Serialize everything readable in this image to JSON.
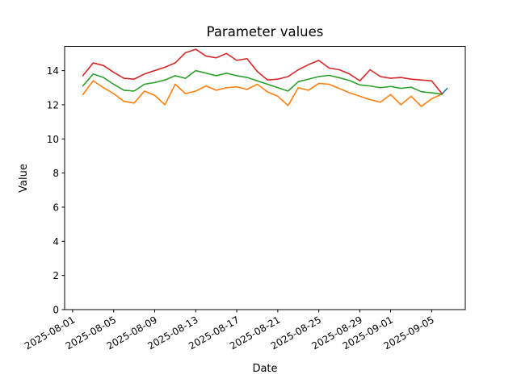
{
  "chart_data": {
    "type": "line",
    "title": "Parameter values",
    "xlabel": "Date",
    "ylabel": "Value",
    "grid": false,
    "legend": "none",
    "ylim": [
      0,
      15.42
    ],
    "xlim_day_offsets": [
      -0.78,
      38.28
    ],
    "y_ticks": [
      0,
      2,
      4,
      6,
      8,
      10,
      12,
      14
    ],
    "x_tick_labels": [
      "2025-08-01",
      "2025-08-05",
      "2025-08-09",
      "2025-08-13",
      "2025-08-17",
      "2025-08-21",
      "2025-08-25",
      "2025-08-29",
      "2025-09-01",
      "2025-09-05"
    ],
    "x_tick_day_offsets": [
      0,
      4,
      8,
      12,
      16,
      20,
      24,
      28,
      31,
      35
    ],
    "dates": [
      "2025-08-02",
      "2025-08-03",
      "2025-08-04",
      "2025-08-05",
      "2025-08-06",
      "2025-08-07",
      "2025-08-08",
      "2025-08-09",
      "2025-08-10",
      "2025-08-11",
      "2025-08-12",
      "2025-08-13",
      "2025-08-14",
      "2025-08-15",
      "2025-08-16",
      "2025-08-17",
      "2025-08-18",
      "2025-08-19",
      "2025-08-20",
      "2025-08-21",
      "2025-08-22",
      "2025-08-23",
      "2025-08-24",
      "2025-08-25",
      "2025-08-26",
      "2025-08-27",
      "2025-08-28",
      "2025-08-29",
      "2025-08-30",
      "2025-08-31",
      "2025-09-01",
      "2025-09-02",
      "2025-09-03",
      "2025-09-04",
      "2025-09-05",
      "2025-09-06"
    ],
    "series": [
      {
        "name": "blue",
        "color": "#1f77b4",
        "day_offsets": [
          36,
          36.5
        ],
        "values": [
          12.62,
          12.95
        ]
      },
      {
        "name": "orange",
        "color": "#ff7f0e",
        "values": [
          12.6,
          13.4,
          13.0,
          12.65,
          12.2,
          12.1,
          12.8,
          12.55,
          12.0,
          13.2,
          12.65,
          12.8,
          13.1,
          12.85,
          13.0,
          13.05,
          12.9,
          13.2,
          12.75,
          12.5,
          11.95,
          13.0,
          12.85,
          13.25,
          13.2,
          12.95,
          12.7,
          12.5,
          12.3,
          12.15,
          12.6,
          12.0,
          12.5,
          11.9,
          12.35,
          12.62
        ]
      },
      {
        "name": "green",
        "color": "#2ca02c",
        "values": [
          13.1,
          13.8,
          13.6,
          13.2,
          12.85,
          12.8,
          13.2,
          13.3,
          13.45,
          13.7,
          13.55,
          14.0,
          13.85,
          13.7,
          13.85,
          13.7,
          13.6,
          13.4,
          13.2,
          13.0,
          12.8,
          13.35,
          13.5,
          13.65,
          13.72,
          13.58,
          13.42,
          13.16,
          13.1,
          13.0,
          13.07,
          12.96,
          13.03,
          12.76,
          12.7,
          12.62
        ]
      },
      {
        "name": "red",
        "color": "#d62728",
        "values": [
          13.7,
          14.45,
          14.3,
          13.9,
          13.55,
          13.5,
          13.8,
          14.0,
          14.2,
          14.45,
          15.05,
          15.25,
          14.85,
          14.75,
          15.0,
          14.6,
          14.7,
          13.95,
          13.45,
          13.5,
          13.65,
          14.05,
          14.35,
          14.6,
          14.15,
          14.05,
          13.8,
          13.4,
          14.05,
          13.65,
          13.55,
          13.6,
          13.5,
          13.45,
          13.4,
          12.65
        ]
      }
    ]
  }
}
